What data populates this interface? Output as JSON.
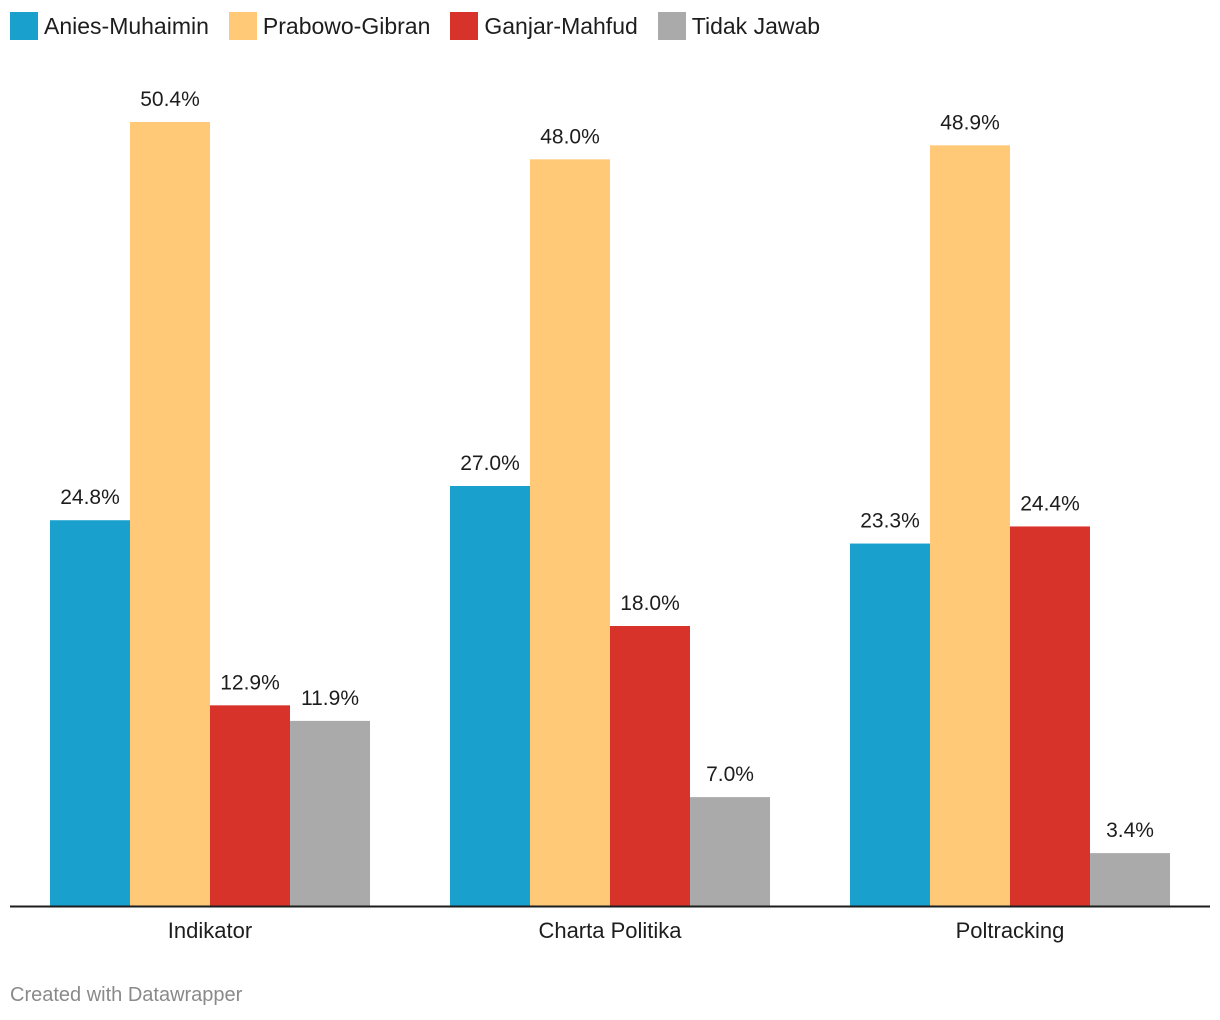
{
  "legend": {
    "items": [
      {
        "label": "Anies-Muhaimin",
        "color": "#1aa0cd"
      },
      {
        "label": "Prabowo-Gibran",
        "color": "#ffc977"
      },
      {
        "label": "Ganjar-Mahfud",
        "color": "#d7332a"
      },
      {
        "label": "Tidak Jawab",
        "color": "#aaaaaa"
      }
    ]
  },
  "footer": {
    "credit": "Created with Datawrapper"
  },
  "chart_data": {
    "type": "bar",
    "categories": [
      "Indikator",
      "Charta Politika",
      "Poltracking"
    ],
    "series": [
      {
        "name": "Anies-Muhaimin",
        "color": "#1aa0cd",
        "values": [
          24.8,
          27.0,
          23.3
        ],
        "labels": [
          "24.8%",
          "27.0%",
          "23.3%"
        ]
      },
      {
        "name": "Prabowo-Gibran",
        "color": "#ffc977",
        "values": [
          50.4,
          48.0,
          48.9
        ],
        "labels": [
          "50.4%",
          "48.0%",
          "48.9%"
        ]
      },
      {
        "name": "Ganjar-Mahfud",
        "color": "#d7332a",
        "values": [
          12.9,
          18.0,
          24.4
        ],
        "labels": [
          "12.9%",
          "18.0%",
          "24.4%"
        ]
      },
      {
        "name": "Tidak Jawab",
        "color": "#aaaaaa",
        "values": [
          11.9,
          7.0,
          3.4
        ],
        "labels": [
          "11.9%",
          "7.0%",
          "3.4%"
        ]
      }
    ],
    "title": "",
    "xlabel": "",
    "ylabel": "",
    "ylim": [
      0,
      50.4
    ],
    "grid": false,
    "legend_position": "top-left"
  }
}
